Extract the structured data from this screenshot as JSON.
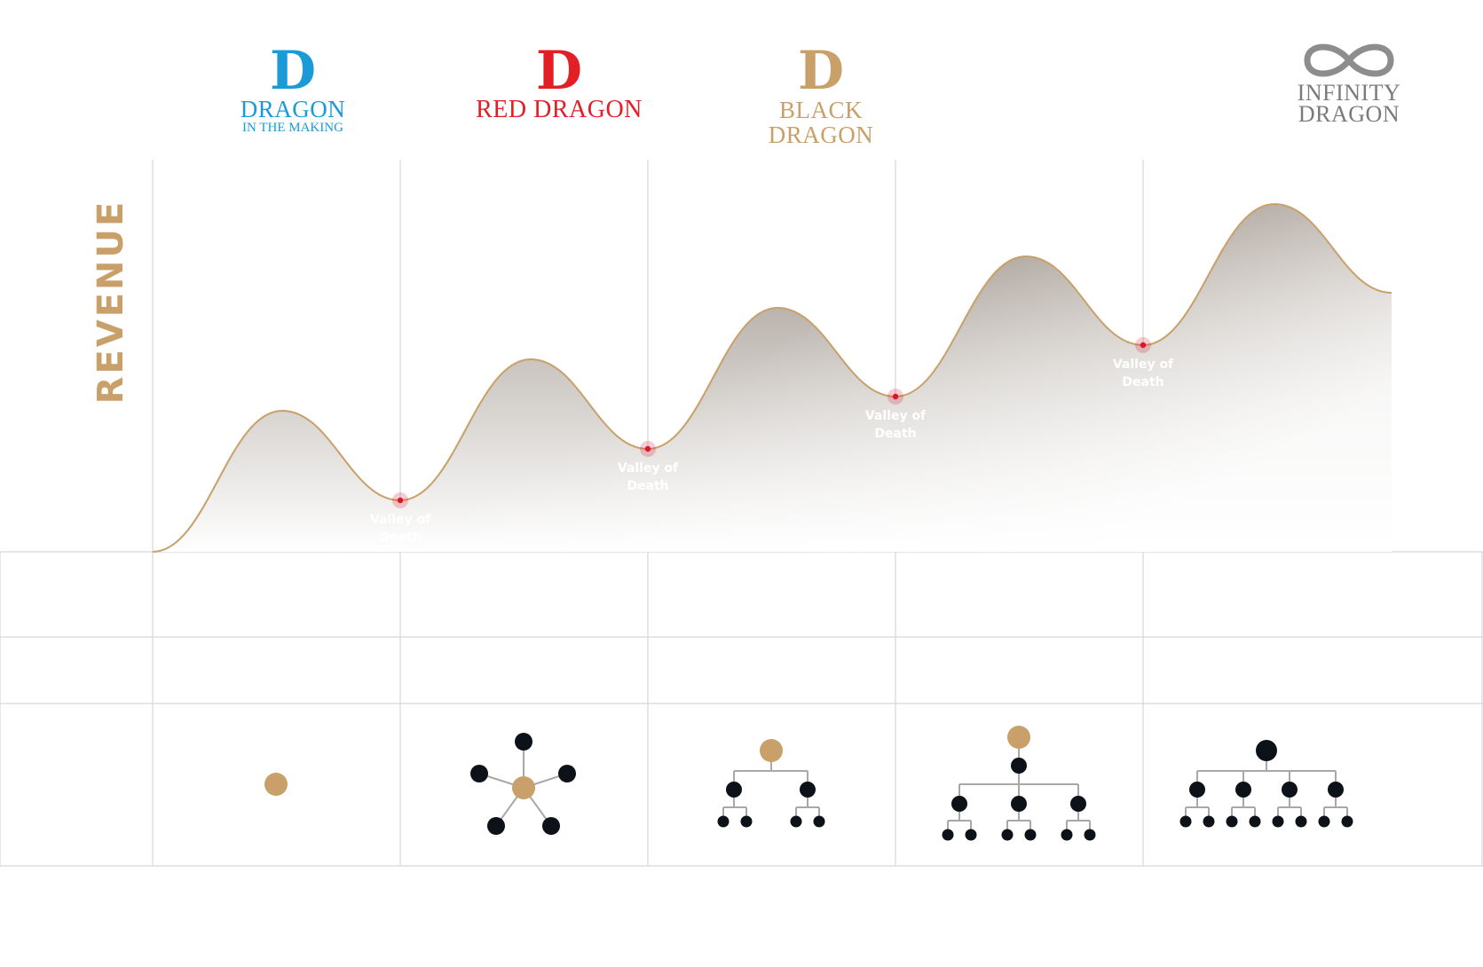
{
  "y_axis_label": "REVENUE",
  "stages": [
    {
      "mark": "D",
      "name": "DRAGON",
      "sub": "IN THE MAKING",
      "color": "#1a9bd7"
    },
    {
      "mark": "D",
      "name": "RED DRAGON",
      "color": "#e31e24"
    },
    {
      "mark": "D",
      "name": "BLACK DRAGON",
      "color": "#c9a06a"
    },
    {
      "name_line1": "INFINITY",
      "name_line2": "DRAGON",
      "color": "#7a7a7a"
    }
  ],
  "valleys": [
    {
      "line1": "Valley of",
      "line2": "Death"
    },
    {
      "line1": "Valley of",
      "line2": "Death"
    },
    {
      "line1": "Valley of",
      "line2": "Death"
    },
    {
      "line1": "Valley of",
      "line2": "Death"
    }
  ],
  "colors": {
    "accent_gold": "#c9a06a",
    "valley_marker": "#d8172a",
    "node_dark": "#0d1118",
    "grid": "#d7d7d7"
  },
  "org_structures": [
    {
      "type": "single"
    },
    {
      "type": "hub-and-spoke",
      "spokes": 5
    },
    {
      "type": "tree",
      "levels": [
        1,
        2,
        4
      ]
    },
    {
      "type": "tree",
      "levels": [
        1,
        1,
        3,
        6
      ]
    },
    {
      "type": "tree",
      "levels": [
        1,
        4,
        8
      ]
    }
  ]
}
